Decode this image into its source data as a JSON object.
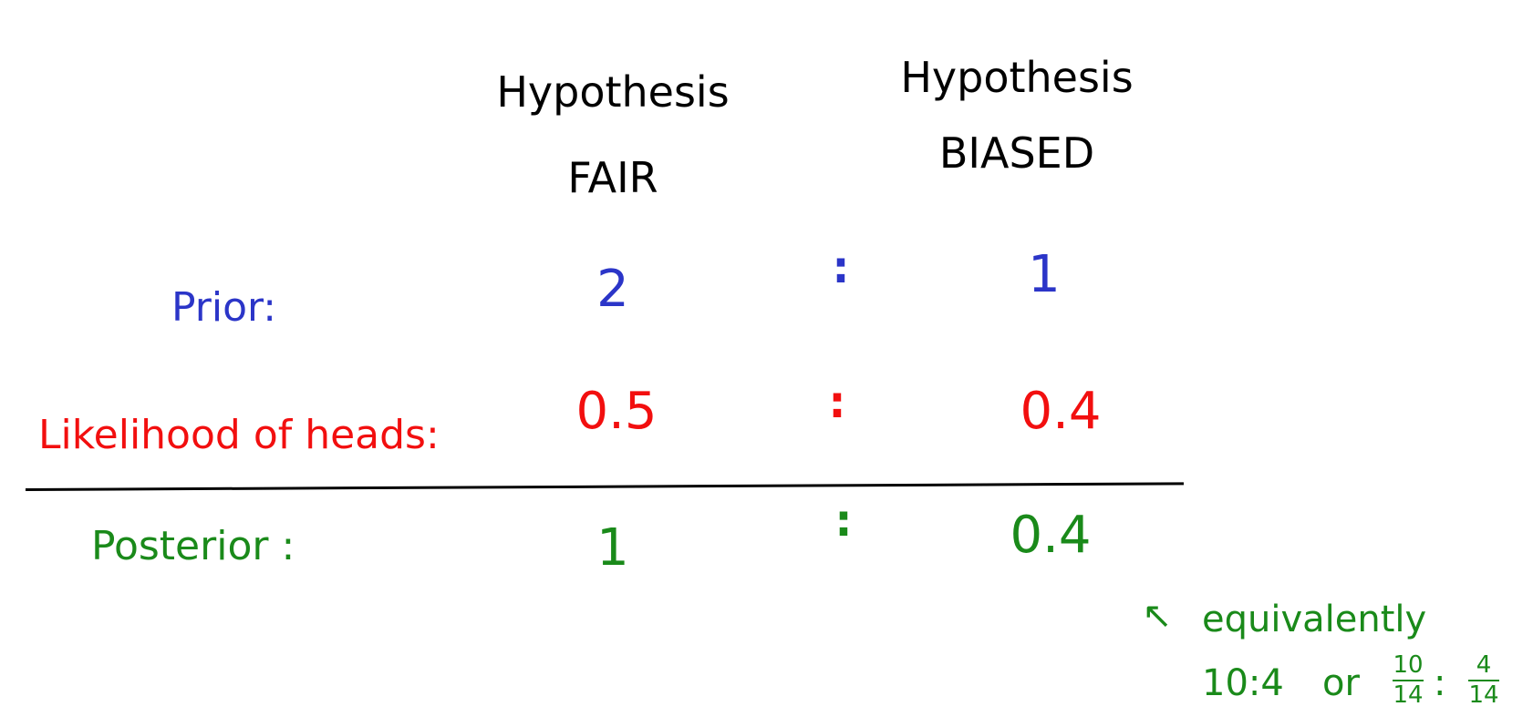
{
  "headers": {
    "fair_line1": "Hypothesis",
    "fair_line2": "FAIR",
    "biased_line1": "Hypothesis",
    "biased_line2": "BIASED"
  },
  "rows": {
    "prior": {
      "label": "Prior:",
      "fair": "2",
      "sep": ":",
      "biased": "1"
    },
    "likelihood": {
      "label": "Likelihood of heads:",
      "fair": "0.5",
      "sep": ":",
      "biased": "0.4"
    },
    "posterior": {
      "label": "Posterior :",
      "fair": "1",
      "sep": ":",
      "biased": "0.4"
    }
  },
  "note": {
    "arrow": "↖",
    "line1": "equivalently",
    "ratio": "10:4",
    "or": "or",
    "frac1_num": "10",
    "frac1_den": "14",
    "frac_sep": ":",
    "frac2_num": "4",
    "frac2_den": "14"
  },
  "colors": {
    "prior": "#2b35c8",
    "likelihood": "#f20f0f",
    "posterior": "#1a8a1a",
    "headers": "#000000"
  }
}
